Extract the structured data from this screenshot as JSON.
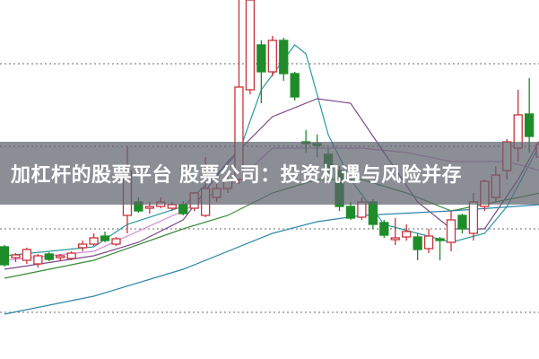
{
  "banner": {
    "title": "加杠杆的股票平台 股票公司：投资机遇与风险并存"
  },
  "chart_data": {
    "type": "candlestick",
    "title": "",
    "xlabel": "",
    "ylabel": "",
    "ylim": [
      0,
      40
    ],
    "grid": {
      "horizontal": true,
      "style": "dotted",
      "levels": [
        5.2,
        14.5,
        23.7,
        32.9
      ]
    },
    "colors": {
      "up": "#c8323c",
      "down": "#1e8c28",
      "grid": "#888888"
    },
    "candles": [
      [
        12.5,
        12.7,
        10.3,
        10.5
      ],
      [
        11.3,
        11.8,
        10.8,
        11.6
      ],
      [
        11.0,
        12.4,
        10.6,
        12.2
      ],
      [
        10.6,
        11.7,
        10.2,
        11.5
      ],
      [
        11.7,
        11.9,
        10.9,
        11.1
      ],
      [
        11.3,
        11.7,
        10.9,
        11.5
      ],
      [
        11.2,
        12.0,
        11.0,
        11.8
      ],
      [
        12.4,
        13.2,
        12.0,
        12.8
      ],
      [
        12.8,
        14.0,
        12.6,
        13.5
      ],
      [
        13.7,
        14.2,
        13.0,
        13.2
      ],
      [
        12.8,
        13.6,
        12.6,
        13.4
      ],
      [
        16.0,
        23.7,
        14.0,
        21.0
      ],
      [
        17.5,
        18.0,
        16.3,
        16.5
      ],
      [
        16.8,
        17.5,
        16.2,
        17.0
      ],
      [
        17.0,
        18.0,
        16.8,
        17.5
      ],
      [
        16.8,
        17.5,
        16.5,
        17.2
      ],
      [
        17.2,
        17.6,
        16.0,
        16.2
      ],
      [
        16.8,
        18.6,
        16.5,
        18.5
      ],
      [
        16.0,
        22.5,
        15.8,
        19.0
      ],
      [
        18.0,
        19.5,
        17.5,
        19.0
      ],
      [
        19.0,
        20.5,
        18.5,
        20.0
      ],
      [
        20.0,
        40.0,
        19.5,
        30.3
      ],
      [
        30.0,
        40.0,
        29.5,
        40.0
      ],
      [
        35.0,
        35.5,
        28.5,
        32.0
      ],
      [
        32.0,
        36.0,
        31.5,
        35.5
      ],
      [
        35.5,
        35.8,
        31.0,
        31.8
      ],
      [
        31.8,
        32.0,
        28.8,
        29.2
      ],
      [
        24.2,
        25.5,
        23.0,
        24.0
      ],
      [
        24.0,
        25.0,
        22.5,
        23.8
      ],
      [
        22.8,
        23.5,
        20.5,
        21.0
      ],
      [
        21.0,
        21.5,
        16.5,
        17.0
      ],
      [
        17.0,
        17.5,
        15.5,
        15.7
      ],
      [
        15.8,
        18.0,
        15.5,
        17.5
      ],
      [
        17.5,
        17.8,
        14.5,
        15.0
      ],
      [
        15.2,
        15.5,
        13.5,
        13.8
      ],
      [
        13.3,
        15.7,
        12.7,
        13.5
      ],
      [
        13.6,
        15.0,
        13.2,
        14.2
      ],
      [
        13.6,
        14.0,
        11.0,
        12.2
      ],
      [
        12.3,
        14.5,
        11.8,
        13.7
      ],
      [
        13.4,
        13.6,
        11.0,
        13.2
      ],
      [
        13.0,
        16.5,
        12.0,
        15.5
      ],
      [
        16.0,
        16.2,
        14.0,
        14.5
      ],
      [
        14.0,
        18.5,
        13.2,
        17.5
      ],
      [
        17.0,
        20.0,
        16.5,
        19.8
      ],
      [
        18.0,
        21.5,
        17.5,
        20.5
      ],
      [
        21.0,
        24.5,
        20.0,
        24.2
      ],
      [
        23.5,
        30.0,
        22.0,
        27.2
      ],
      [
        27.3,
        31.3,
        23.0,
        24.8
      ],
      [
        22.5,
        24.5,
        21.5,
        23.9
      ]
    ],
    "lines": [
      {
        "color": "#2a9aa0",
        "x": [
          0,
          8,
          11,
          16,
          21,
          23,
          26,
          27,
          29,
          31,
          34,
          37,
          40,
          43,
          45,
          48
        ],
        "values": [
          11.5,
          12.5,
          15.0,
          17.0,
          23.0,
          30.0,
          35.0,
          34.0,
          25.0,
          20.0,
          15.0,
          14.0,
          13.0,
          14.0,
          17.0,
          24.0
        ]
      },
      {
        "color": "#d48ad8",
        "x": [
          0,
          8,
          16,
          21,
          24,
          32,
          36,
          40,
          45,
          48
        ],
        "values": [
          11.0,
          12.0,
          16.5,
          20.0,
          23.5,
          23.5,
          23.0,
          22.0,
          22.0,
          21.0
        ]
      },
      {
        "color": "#7a4a8a",
        "x": [
          0,
          8,
          12,
          16,
          20,
          24,
          28,
          31,
          34,
          37,
          40,
          43,
          46,
          48
        ],
        "values": [
          10.0,
          11.5,
          13.0,
          15.5,
          22.0,
          27.0,
          29.0,
          28.5,
          23.0,
          17.5,
          14.5,
          14.5,
          20.0,
          24.5
        ]
      },
      {
        "color": "#3a8a3a",
        "x": [
          0,
          8,
          16,
          20,
          24,
          28,
          32,
          36,
          40,
          44,
          48
        ],
        "values": [
          9.0,
          11.0,
          14.5,
          16.0,
          18.5,
          20.0,
          20.0,
          18.5,
          16.5,
          17.5,
          18.5
        ]
      },
      {
        "color": "#2f86a8",
        "x": [
          0,
          8,
          16,
          24,
          28,
          32,
          40,
          48
        ],
        "values": [
          5.0,
          7.0,
          10.0,
          14.0,
          15.3,
          16.0,
          16.5,
          17.2
        ]
      }
    ]
  }
}
